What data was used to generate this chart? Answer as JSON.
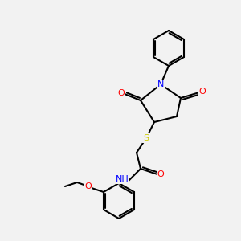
{
  "bg_color": "#f2f2f2",
  "bond_color": "#000000",
  "bond_width": 1.5,
  "atom_colors": {
    "N": "#0000ff",
    "O": "#ff0000",
    "S": "#cccc00",
    "H": "#888888"
  },
  "font_size": 8
}
